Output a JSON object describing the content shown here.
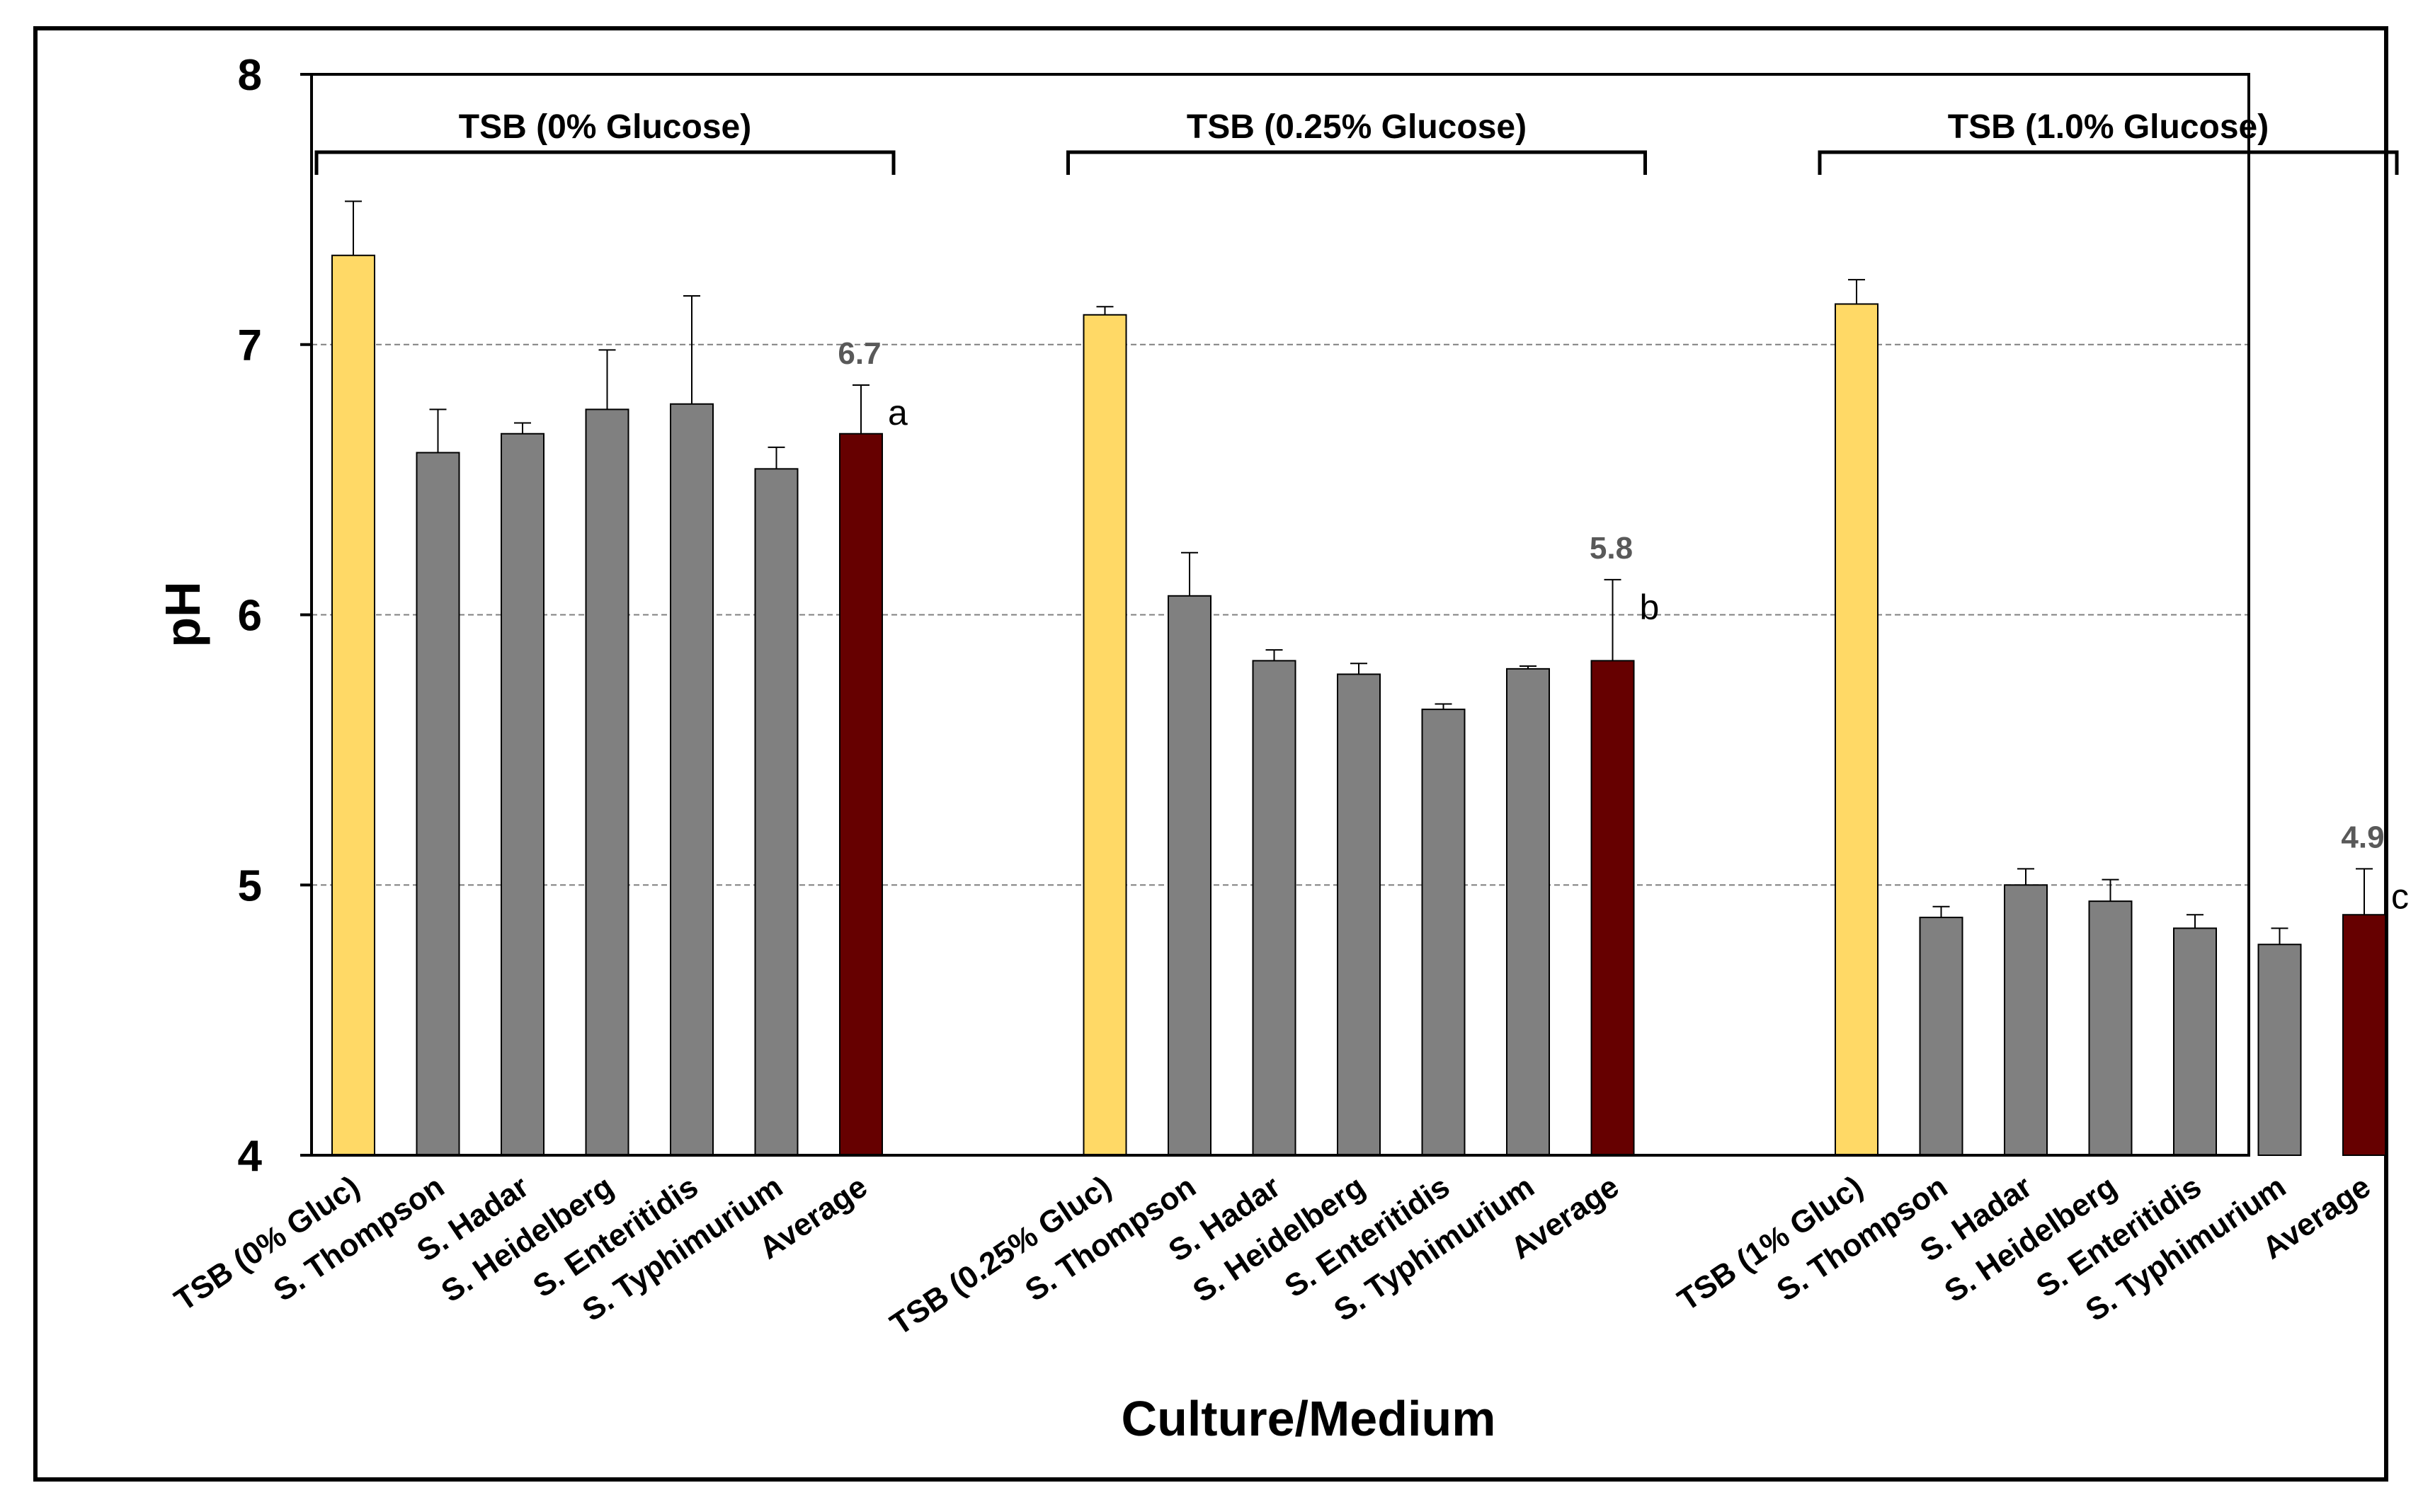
{
  "chart_data": {
    "type": "bar",
    "title": "",
    "xlabel": "Culture/Medium",
    "ylabel": "pH",
    "ylim": [
      4,
      8
    ],
    "yticks": [
      "4",
      "5",
      "6",
      "7",
      "8"
    ],
    "grid": "horizontal dashed",
    "colors": {
      "control": "#FFD966",
      "strain": "#808080",
      "average": "#660000",
      "grid": "#808080",
      "axis": "#000000",
      "value_label": "#595959"
    },
    "groups": [
      {
        "label": "TSB (0% Glucose)",
        "bars": [
          {
            "category": "TSB (0% Gluc)",
            "value": 7.33,
            "error": 0.2,
            "kind": "control"
          },
          {
            "category": "S. Thompson",
            "value": 6.6,
            "error": 0.16,
            "kind": "strain"
          },
          {
            "category": "S. Hadar",
            "value": 6.67,
            "error": 0.04,
            "kind": "strain"
          },
          {
            "category": "S. Heidelberg",
            "value": 6.76,
            "error": 0.22,
            "kind": "strain"
          },
          {
            "category": "S. Enteritidis",
            "value": 6.78,
            "error": 0.4,
            "kind": "strain"
          },
          {
            "category": "S. Typhimurium",
            "value": 6.54,
            "error": 0.08,
            "kind": "strain"
          },
          {
            "category": "Average",
            "value": 6.67,
            "error": 0.18,
            "kind": "average",
            "value_label": "6.7",
            "letter": "a"
          }
        ]
      },
      {
        "label": "TSB (0.25% Glucose)",
        "bars": [
          {
            "category": "TSB (0.25% Gluc)",
            "value": 7.11,
            "error": 0.03,
            "kind": "control"
          },
          {
            "category": "S. Thompson",
            "value": 6.07,
            "error": 0.16,
            "kind": "strain"
          },
          {
            "category": "S. Hadar",
            "value": 5.83,
            "error": 0.04,
            "kind": "strain"
          },
          {
            "category": "S. Heidelberg",
            "value": 5.78,
            "error": 0.04,
            "kind": "strain"
          },
          {
            "category": "S. Enteritidis",
            "value": 5.65,
            "error": 0.02,
            "kind": "strain"
          },
          {
            "category": "S. Typhimurium",
            "value": 5.8,
            "error": 0.01,
            "kind": "strain"
          },
          {
            "category": "Average",
            "value": 5.83,
            "error": 0.3,
            "kind": "average",
            "value_label": "5.8",
            "letter": "b"
          }
        ]
      },
      {
        "label": "TSB (1.0% Glucose)",
        "bars": [
          {
            "category": "TSB (1% Gluc)",
            "value": 7.15,
            "error": 0.09,
            "kind": "control"
          },
          {
            "category": "S. Thompson",
            "value": 4.88,
            "error": 0.04,
            "kind": "strain"
          },
          {
            "category": "S. Hadar",
            "value": 5.0,
            "error": 0.06,
            "kind": "strain"
          },
          {
            "category": "S. Heidelberg",
            "value": 4.94,
            "error": 0.08,
            "kind": "strain"
          },
          {
            "category": "S. Enteritidis",
            "value": 4.84,
            "error": 0.05,
            "kind": "strain"
          },
          {
            "category": "S. Typhimurium",
            "value": 4.78,
            "error": 0.06,
            "kind": "strain"
          },
          {
            "category": "Average",
            "value": 4.89,
            "error": 0.17,
            "kind": "average",
            "value_label": "4.9",
            "letter": "c"
          }
        ]
      }
    ]
  }
}
